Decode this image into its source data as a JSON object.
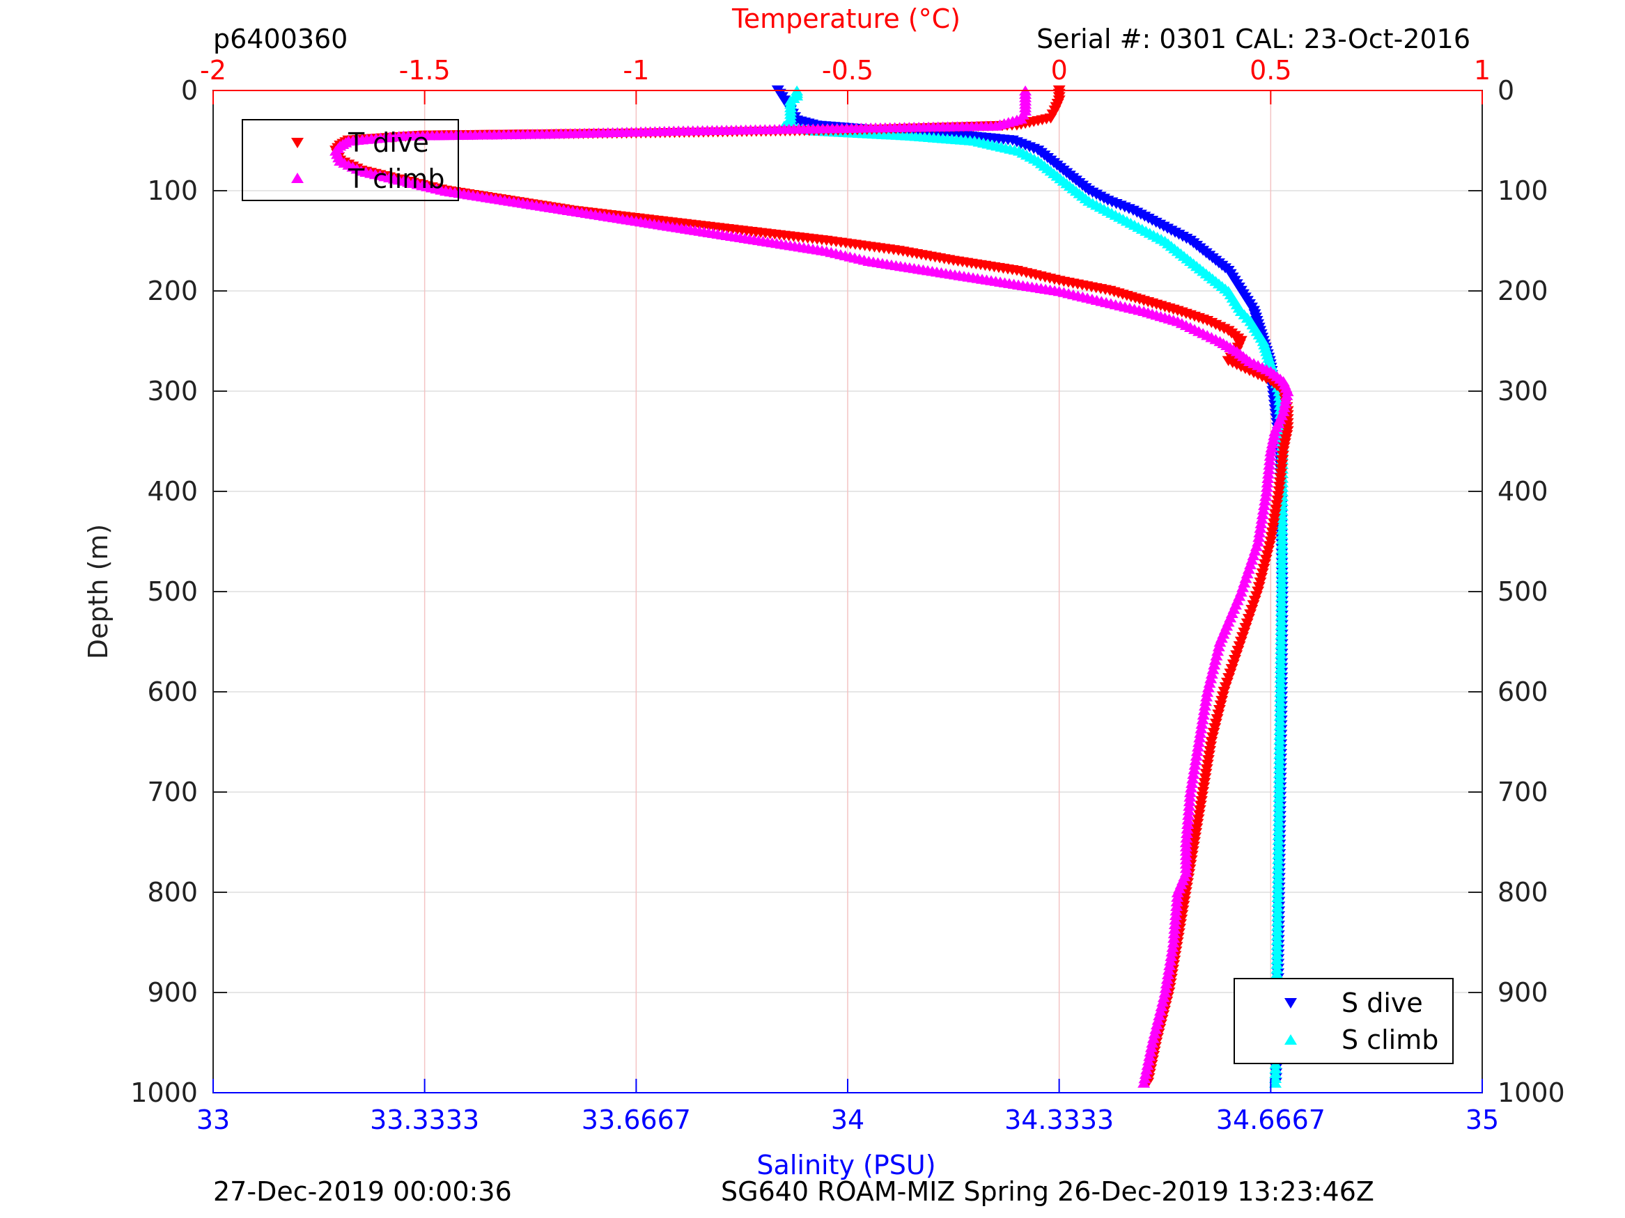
{
  "header": {
    "profile_id": "p6400360",
    "serial_cal": "Serial #: 0301  CAL: 23-Oct-2016"
  },
  "footer": {
    "timestamp": "27-Dec-2019 00:00:36",
    "mission": "SG640 ROAM-MIZ Spring 26-Dec-2019 13:23:46Z"
  },
  "colors": {
    "t_dive": "#ff0000",
    "t_climb": "#ff00ff",
    "s_dive": "#0000ff",
    "s_climb": "#00ffff",
    "temperature_axis": "#ff0000",
    "salinity_axis": "#0000ff",
    "temperature_grid": "#f4c4c4",
    "depth_grid": "#dddddd"
  },
  "chart_data": {
    "type": "scatter",
    "title": "",
    "ylabel": "Depth (m)",
    "ylim": [
      0,
      1000
    ],
    "y_reversed": true,
    "yticks": [
      "0",
      "100",
      "200",
      "300",
      "400",
      "500",
      "600",
      "700",
      "800",
      "900",
      "1000"
    ],
    "y_right_ticks": [
      "0",
      "100",
      "200",
      "300",
      "400",
      "500",
      "600",
      "700",
      "800",
      "900",
      "1000"
    ],
    "x_top": {
      "label": "Temperature (°C)",
      "range": [
        -2,
        1
      ],
      "ticks": [
        "-2",
        "-1.5",
        "-1",
        "-0.5",
        "0",
        "0.5",
        "1"
      ]
    },
    "x_bottom": {
      "label": "Salinity (PSU)",
      "range": [
        33,
        35
      ],
      "ticks": [
        "33",
        "33.3333",
        "33.6667",
        "34",
        "34.3333",
        "34.6667",
        "35"
      ]
    },
    "legend_temperature": {
      "placement": "top-left",
      "entries": [
        "T dive",
        "T climb"
      ]
    },
    "legend_salinity": {
      "placement": "bottom-right",
      "entries": [
        "S dive",
        "S climb"
      ]
    },
    "series": [
      {
        "name": "T dive",
        "axis": "temperature",
        "marker": "triangle-down",
        "depth": [
          0,
          10,
          20,
          28,
          35,
          40,
          43,
          45,
          50,
          55,
          60,
          70,
          80,
          90,
          100,
          110,
          120,
          130,
          140,
          150,
          160,
          170,
          180,
          190,
          200,
          210,
          220,
          230,
          240,
          250,
          260,
          270,
          280,
          290,
          300,
          320,
          340,
          360,
          400,
          450,
          500,
          550,
          600,
          650,
          700,
          750,
          800,
          850,
          900,
          950,
          990
        ],
        "values": [
          0.0,
          0.0,
          -0.01,
          -0.02,
          -0.1,
          -0.5,
          -1.0,
          -1.5,
          -1.68,
          -1.7,
          -1.71,
          -1.7,
          -1.65,
          -1.55,
          -1.45,
          -1.3,
          -1.15,
          -0.95,
          -0.75,
          -0.55,
          -0.38,
          -0.25,
          -0.1,
          0.0,
          0.12,
          0.2,
          0.28,
          0.35,
          0.4,
          0.43,
          0.42,
          0.4,
          0.45,
          0.5,
          0.53,
          0.54,
          0.54,
          0.53,
          0.52,
          0.5,
          0.47,
          0.43,
          0.39,
          0.36,
          0.34,
          0.32,
          0.3,
          0.28,
          0.26,
          0.23,
          0.21
        ]
      },
      {
        "name": "T climb",
        "axis": "temperature",
        "marker": "triangle-up",
        "depth": [
          0,
          10,
          20,
          28,
          35,
          40,
          43,
          45,
          50,
          55,
          60,
          70,
          80,
          90,
          100,
          110,
          120,
          130,
          140,
          150,
          160,
          170,
          180,
          190,
          200,
          210,
          220,
          230,
          240,
          250,
          260,
          270,
          280,
          290,
          300,
          320,
          340,
          360,
          400,
          450,
          500,
          530,
          550,
          600,
          650,
          700,
          750,
          780,
          800,
          850,
          900,
          950,
          990
        ],
        "values": [
          -0.08,
          -0.08,
          -0.08,
          -0.09,
          -0.15,
          -0.9,
          -1.2,
          -1.55,
          -1.68,
          -1.7,
          -1.71,
          -1.7,
          -1.65,
          -1.55,
          -1.45,
          -1.3,
          -1.15,
          -1.0,
          -0.85,
          -0.7,
          -0.55,
          -0.45,
          -0.3,
          -0.15,
          0.0,
          0.1,
          0.2,
          0.28,
          0.33,
          0.38,
          0.42,
          0.45,
          0.5,
          0.53,
          0.54,
          0.53,
          0.51,
          0.5,
          0.49,
          0.47,
          0.43,
          0.4,
          0.38,
          0.35,
          0.33,
          0.31,
          0.3,
          0.3,
          0.28,
          0.27,
          0.25,
          0.22,
          0.2
        ]
      },
      {
        "name": "S dive",
        "axis": "salinity",
        "marker": "triangle-down",
        "depth": [
          0,
          10,
          20,
          30,
          35,
          40,
          45,
          50,
          60,
          70,
          80,
          90,
          100,
          110,
          120,
          130,
          140,
          150,
          160,
          170,
          180,
          190,
          200,
          210,
          220,
          230,
          240,
          250,
          260,
          270,
          280,
          300,
          350,
          400,
          500,
          600,
          700,
          800,
          900,
          990
        ],
        "values": [
          33.89,
          33.9,
          33.91,
          33.92,
          33.95,
          34.05,
          34.18,
          34.26,
          34.3,
          34.32,
          34.34,
          34.36,
          34.38,
          34.41,
          34.45,
          34.48,
          34.51,
          34.54,
          34.56,
          34.58,
          34.6,
          34.61,
          34.62,
          34.63,
          34.64,
          34.645,
          34.65,
          34.655,
          34.66,
          34.665,
          34.668,
          34.67,
          34.68,
          34.683,
          34.685,
          34.684,
          34.682,
          34.68,
          34.678,
          34.675
        ]
      },
      {
        "name": "S climb",
        "axis": "salinity",
        "marker": "triangle-up",
        "depth": [
          0,
          5,
          10,
          20,
          30,
          35,
          40,
          45,
          50,
          60,
          70,
          80,
          90,
          100,
          110,
          120,
          130,
          140,
          150,
          160,
          170,
          180,
          190,
          200,
          210,
          220,
          230,
          240,
          250,
          260,
          270,
          280,
          300,
          350,
          400,
          500,
          600,
          700,
          800,
          900,
          990
        ],
        "values": [
          33.92,
          33.92,
          33.91,
          33.91,
          33.91,
          33.9,
          33.95,
          34.1,
          34.2,
          34.27,
          34.3,
          34.32,
          34.34,
          34.36,
          34.38,
          34.41,
          34.44,
          34.47,
          34.5,
          34.52,
          34.54,
          34.56,
          34.58,
          34.6,
          34.61,
          34.62,
          34.635,
          34.645,
          34.655,
          34.66,
          34.665,
          34.67,
          34.68,
          34.685,
          34.685,
          34.684,
          34.682,
          34.68,
          34.678,
          34.676,
          34.674
        ]
      }
    ]
  }
}
